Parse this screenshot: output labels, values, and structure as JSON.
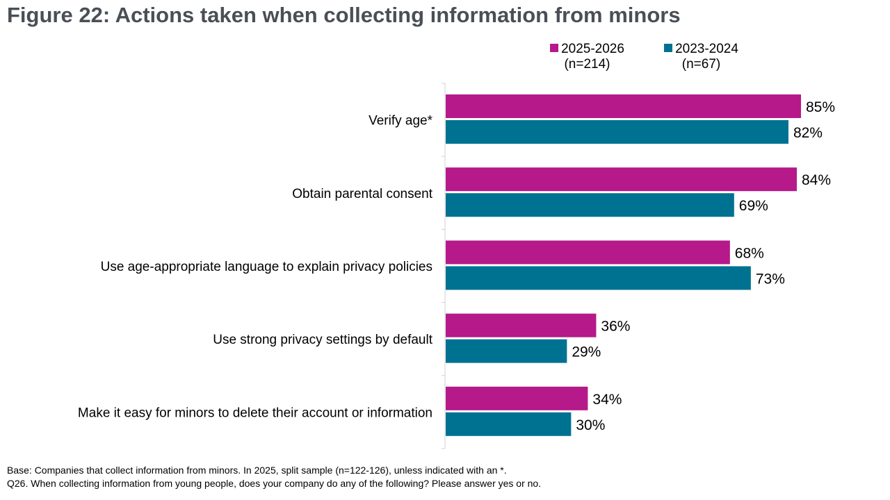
{
  "title": "Figure 22: Actions taken when collecting information from minors",
  "chart_data": {
    "type": "bar",
    "orientation": "horizontal",
    "categories": [
      "Verify age*",
      "Obtain parental consent",
      "Use age-appropriate language to explain privacy policies",
      "Use strong privacy settings by default",
      "Make it easy for minors to delete their account or information"
    ],
    "series": [
      {
        "name": "2025-2026",
        "sample": "(n=214)",
        "color": "#b5198a",
        "values": [
          85,
          84,
          68,
          36,
          34
        ],
        "labels": [
          "85%",
          "84%",
          "68%",
          "36%",
          "34%"
        ]
      },
      {
        "name": "2023-2024",
        "sample": "(n=67)",
        "color": "#007291",
        "values": [
          82,
          69,
          73,
          29,
          30
        ],
        "labels": [
          "82%",
          "69%",
          "73%",
          "29%",
          "30%"
        ]
      }
    ],
    "xlim": [
      0,
      100
    ],
    "grid": false,
    "legend": "top-right"
  },
  "footnotes": {
    "base": "Base: Companies that collect information from minors. In 2025, split sample (n=122-126), unless indicated with an *.",
    "question": "Q26. When collecting information from young people, does your company do any of the following? Please answer yes or no."
  }
}
